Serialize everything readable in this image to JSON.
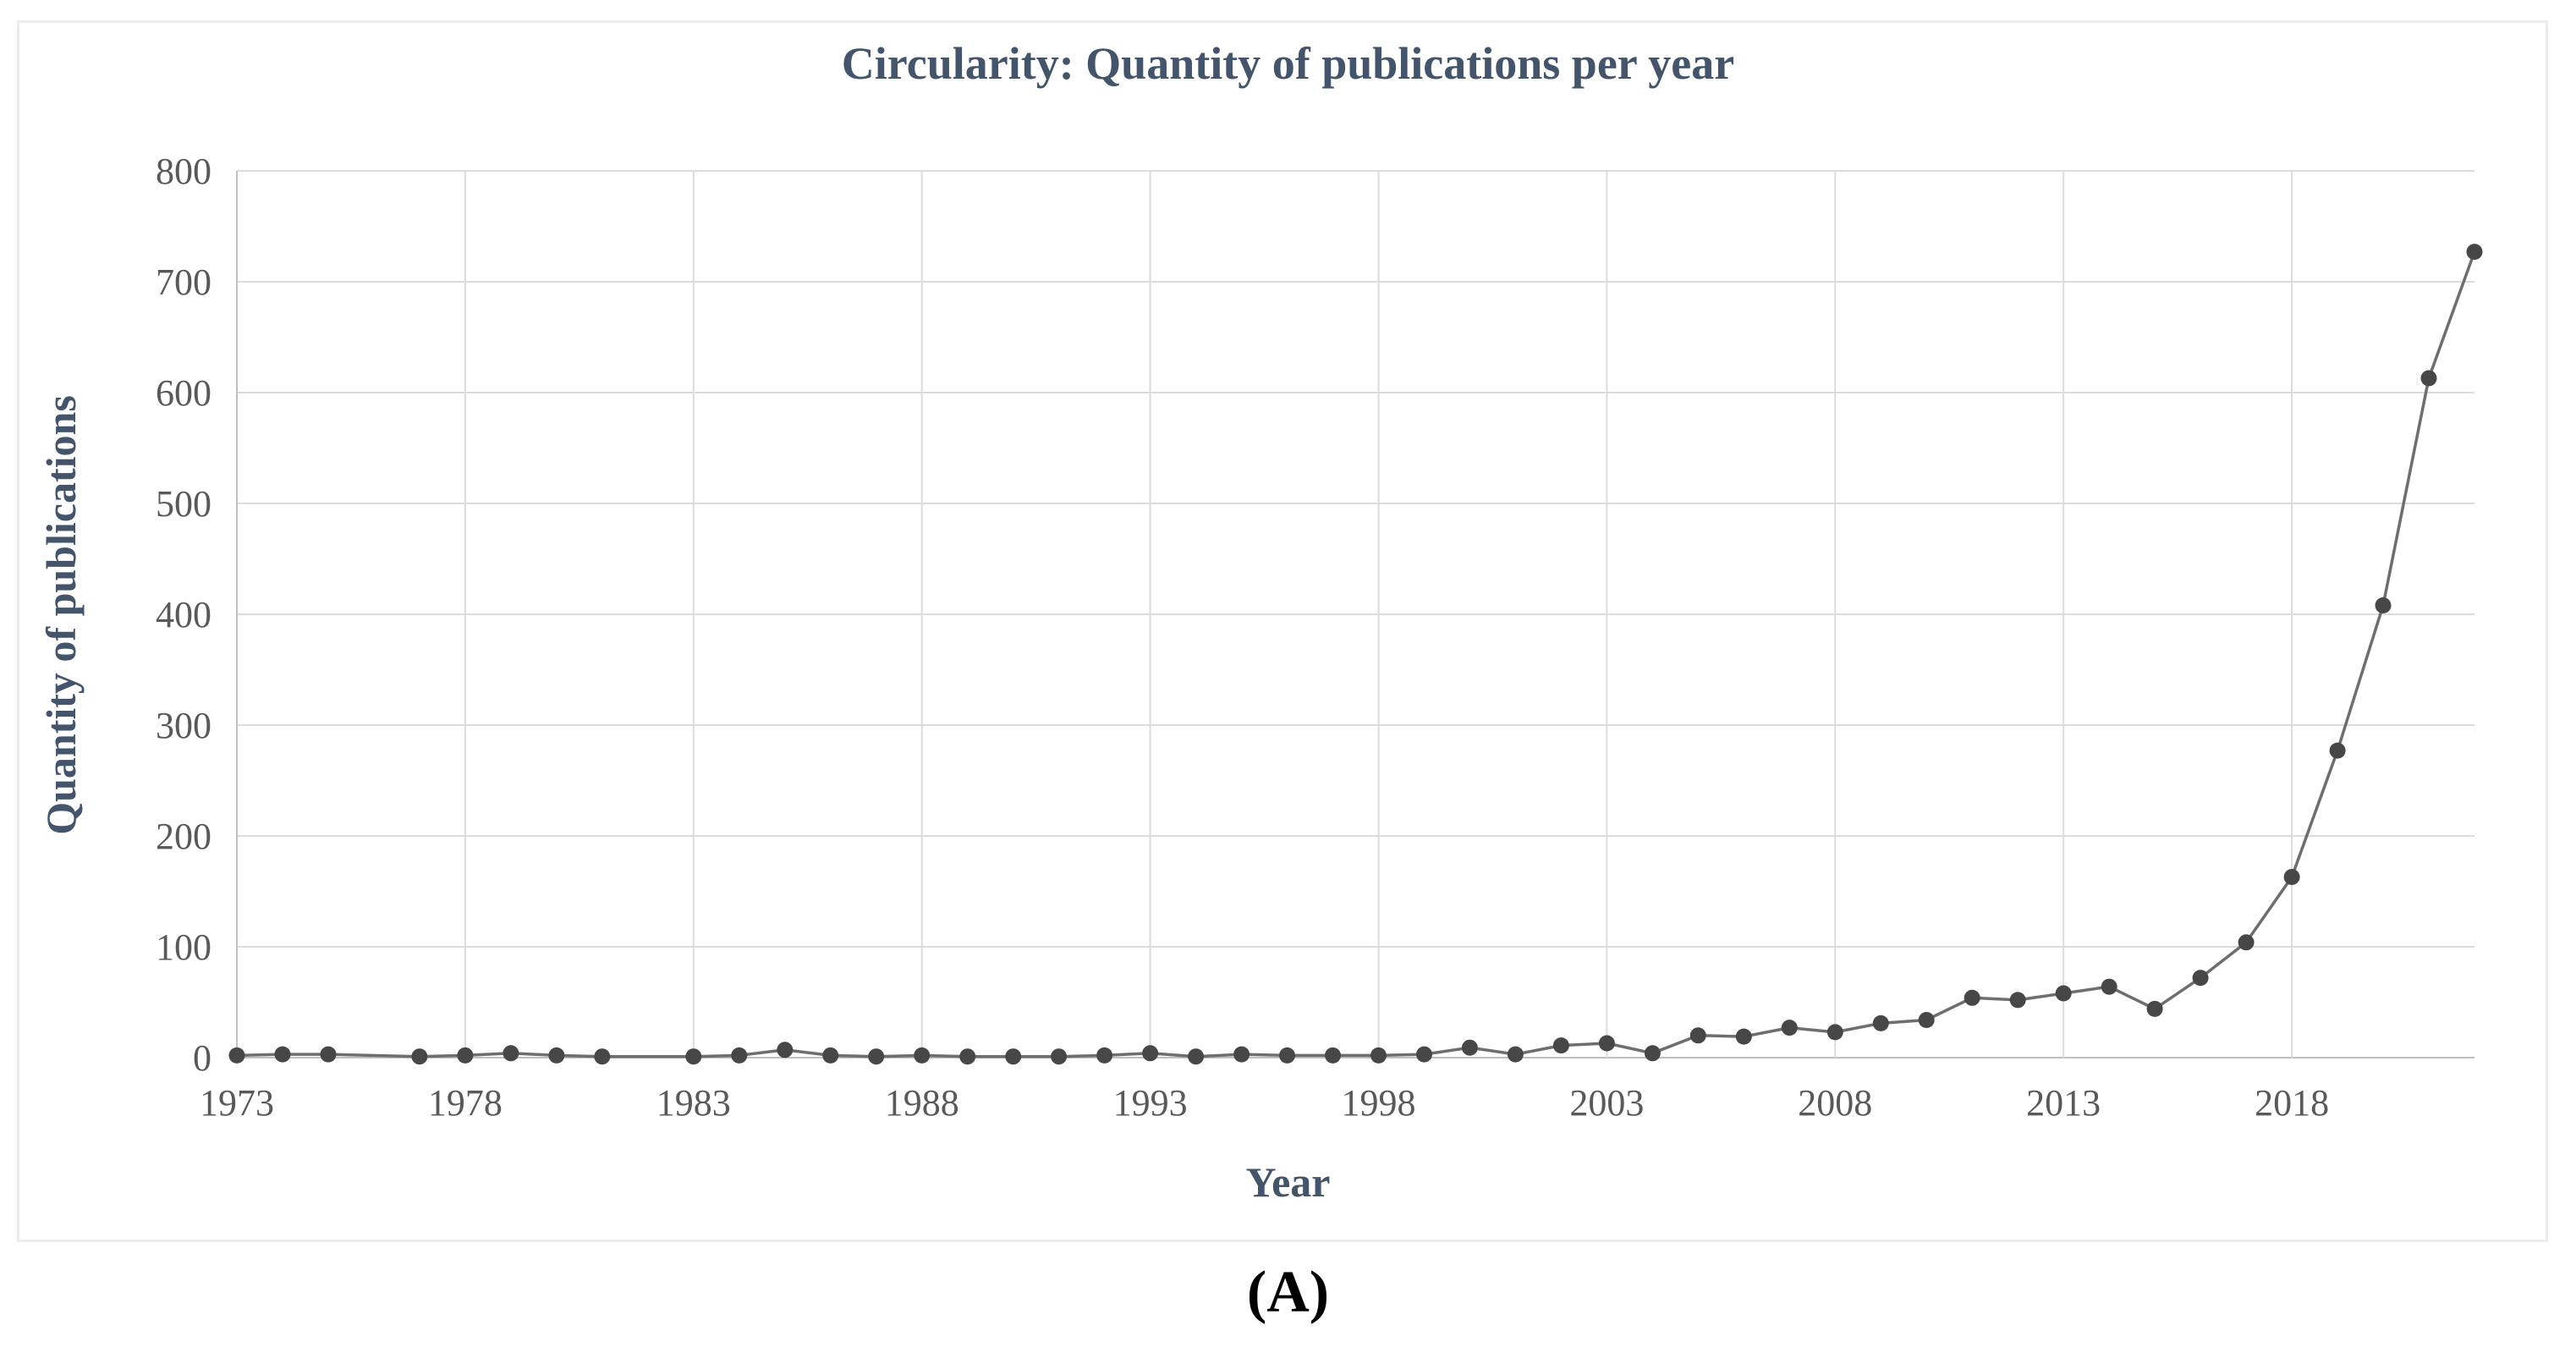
{
  "page": {
    "caption": "(A)"
  },
  "chart": {
    "title": "Circularity: Quantity of publications per year",
    "x_axis_title": "Year",
    "y_axis_title": "Quantity of publications",
    "colors": {
      "title": "#44546A",
      "tick_label": "#595959",
      "gridline": "#DCDCDC",
      "axis_line": "#C0C0C0",
      "series_line": "#6E6E6E",
      "marker": "#474747",
      "frame_border": "#ECECEC",
      "background": "#FFFFFF",
      "caption": "#000000"
    }
  },
  "chart_data": {
    "type": "line",
    "title": "Circularity: Quantity of publications per year",
    "xlabel": "Year",
    "ylabel": "Quantity of publications",
    "ylim": [
      0,
      800
    ],
    "y_ticks": [
      0,
      100,
      200,
      300,
      400,
      500,
      600,
      700,
      800
    ],
    "x_tick_labels": [
      "1973",
      "1978",
      "1983",
      "1988",
      "1993",
      "1998",
      "2003",
      "2008",
      "2013",
      "2018"
    ],
    "grid": "on",
    "legend": "none",
    "marker": "filled-circle",
    "x": [
      1973,
      1974,
      1975,
      1976,
      1977,
      1978,
      1979,
      1980,
      1981,
      1982,
      1983,
      1984,
      1985,
      1986,
      1987,
      1988,
      1989,
      1990,
      1991,
      1992,
      1993,
      1994,
      1995,
      1996,
      1997,
      1998,
      1999,
      2000,
      2001,
      2002,
      2003,
      2004,
      2005,
      2006,
      2007,
      2008,
      2009,
      2010,
      2011,
      2012,
      2013,
      2014,
      2015,
      2016,
      2017,
      2018,
      2019,
      2020,
      2021,
      2022
    ],
    "series": [
      {
        "name": "Quantity of publications",
        "values": [
          2,
          3,
          3,
          null,
          1,
          2,
          4,
          2,
          1,
          null,
          1,
          2,
          7,
          2,
          1,
          2,
          1,
          1,
          1,
          2,
          4,
          1,
          3,
          2,
          2,
          2,
          3,
          9,
          3,
          11,
          13,
          4,
          20,
          19,
          27,
          23,
          31,
          34,
          54,
          52,
          58,
          64,
          44,
          72,
          104,
          163,
          277,
          408,
          613,
          727
        ]
      }
    ]
  }
}
